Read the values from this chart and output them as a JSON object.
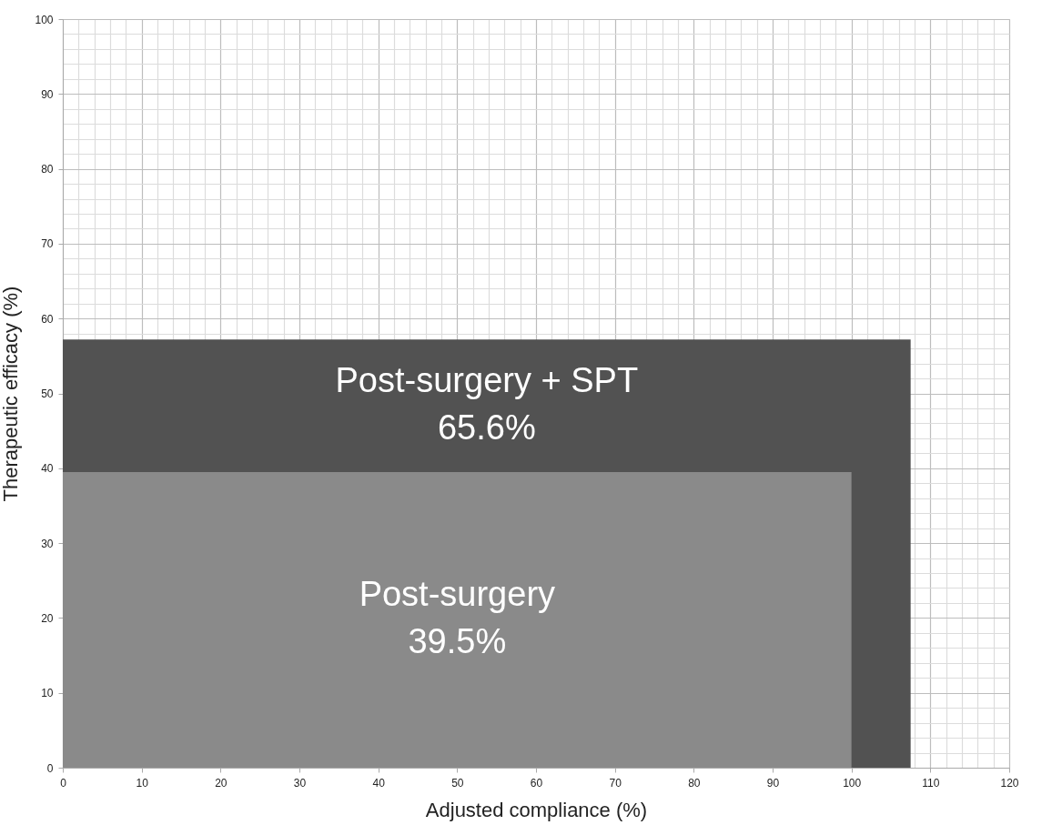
{
  "chart_data": {
    "type": "area",
    "xlabel": "Adjusted compliance (%)",
    "ylabel": "Therapeutic efficacy (%)",
    "series": [
      {
        "name": "Post-surgery + SPT",
        "color": "#525252",
        "x": [
          0,
          107.5
        ],
        "values": [
          57.2,
          57.2
        ]
      },
      {
        "name": "Post-surgery",
        "color": "#8a8a8a",
        "x": [
          0,
          100
        ],
        "values": [
          39.5,
          39.5
        ]
      }
    ],
    "annotations": [
      "65.6%",
      "39.5%"
    ],
    "xlim": [
      0,
      120
    ],
    "ylim": [
      0,
      100
    ],
    "grid": true,
    "xticks": [
      0,
      {
        "value": 2,
        "label": null
      },
      {
        "value": 4,
        "label": null
      },
      {
        "value": 6,
        "label": null
      },
      {
        "value": 8,
        "label": null
      },
      10,
      {
        "value": 12,
        "label": null
      },
      {
        "value": 14,
        "label": null
      },
      {
        "value": 16,
        "label": null
      },
      {
        "value": 18,
        "label": null
      },
      20,
      {
        "value": 22,
        "label": null
      },
      {
        "value": 24,
        "label": null
      },
      {
        "value": 26,
        "label": null
      },
      {
        "value": 28,
        "label": null
      },
      30,
      {
        "value": 32,
        "label": null
      },
      {
        "value": 34,
        "label": null
      },
      {
        "value": 36,
        "label": null
      },
      {
        "value": 38,
        "label": null
      },
      40,
      {
        "value": 42,
        "label": null
      },
      {
        "value": 44,
        "label": null
      },
      {
        "value": 46,
        "label": null
      },
      {
        "value": 48,
        "label": null
      },
      50,
      {
        "value": 52,
        "label": null
      },
      {
        "value": 54,
        "label": null
      },
      {
        "value": 56,
        "label": null
      },
      {
        "value": 58,
        "label": null
      },
      60,
      {
        "value": 62,
        "label": null
      },
      {
        "value": 64,
        "label": null
      },
      {
        "value": 66,
        "label": null
      },
      {
        "value": 68,
        "label": null
      },
      70,
      {
        "value": 72,
        "label": null
      },
      {
        "value": 74,
        "label": null
      },
      {
        "value": 76,
        "label": null
      },
      {
        "value": 78,
        "label": null
      },
      80,
      {
        "value": 82,
        "label": null
      },
      {
        "value": 84,
        "label": null
      },
      {
        "value": 86,
        "label": null
      },
      {
        "value": 88,
        "label": null
      },
      90,
      {
        "value": 92,
        "label": null
      },
      {
        "value": 94,
        "label": null
      },
      {
        "value": 96,
        "label": null
      },
      {
        "value": 98,
        "label": null
      },
      100,
      {
        "value": 102,
        "label": null
      },
      {
        "value": 104,
        "label": null
      },
      {
        "value": 106,
        "label": null
      },
      {
        "value": 108,
        "label": null
      },
      110,
      {
        "value": 112,
        "label": null
      },
      {
        "value": 114,
        "label": null
      },
      {
        "value": 116,
        "label": null
      },
      {
        "value": 118,
        "label": null
      },
      120
    ],
    "yticks": [
      0,
      {
        "value": 2,
        "label": null
      },
      {
        "value": 4,
        "label": null
      },
      {
        "value": 6,
        "label": null
      },
      {
        "value": 8,
        "label": null
      },
      10,
      {
        "value": 12,
        "label": null
      },
      {
        "value": 14,
        "label": null
      },
      {
        "value": 16,
        "label": null
      },
      {
        "value": 18,
        "label": null
      },
      20,
      {
        "value": 22,
        "label": null
      },
      {
        "value": 24,
        "label": null
      },
      {
        "value": 26,
        "label": null
      },
      {
        "value": 28,
        "label": null
      },
      30,
      {
        "value": 32,
        "label": null
      },
      {
        "value": 34,
        "label": null
      },
      {
        "value": 36,
        "label": null
      },
      {
        "value": 38,
        "label": null
      },
      40,
      {
        "value": 42,
        "label": null
      },
      {
        "value": 44,
        "label": null
      },
      {
        "value": 46,
        "label": null
      },
      {
        "value": 48,
        "label": null
      },
      50,
      {
        "value": 52,
        "label": null
      },
      {
        "value": 54,
        "label": null
      },
      {
        "value": 56,
        "label": null
      },
      {
        "value": 58,
        "label": null
      },
      60,
      {
        "value": 62,
        "label": null
      },
      {
        "value": 64,
        "label": null
      },
      {
        "value": 66,
        "label": null
      },
      {
        "value": 68,
        "label": null
      },
      70,
      {
        "value": 72,
        "label": null
      },
      {
        "value": 74,
        "label": null
      },
      {
        "value": 76,
        "label": null
      },
      {
        "value": 78,
        "label": null
      },
      80,
      {
        "value": 82,
        "label": null
      },
      {
        "value": 84,
        "label": null
      },
      {
        "value": 86,
        "label": null
      },
      {
        "value": 88,
        "label": null
      },
      90,
      {
        "value": 92,
        "label": null
      },
      {
        "value": 94,
        "label": null
      },
      {
        "value": 96,
        "label": null
      },
      {
        "value": 98,
        "label": null
      },
      100
    ]
  }
}
